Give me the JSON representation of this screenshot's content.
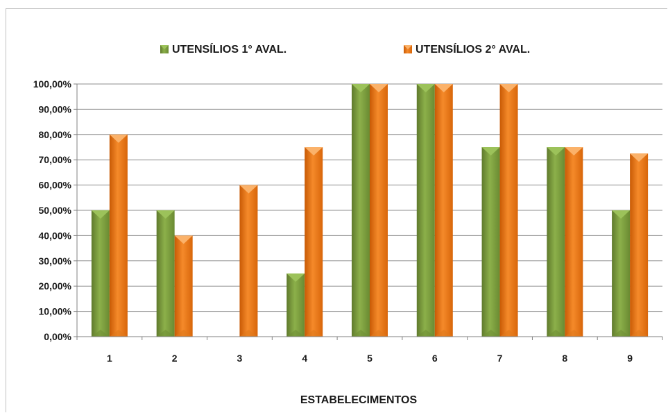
{
  "chart_data": {
    "type": "bar",
    "title": "",
    "xlabel": "ESTABELECIMENTOS",
    "ylabel": "",
    "categories": [
      "1",
      "2",
      "3",
      "4",
      "5",
      "6",
      "7",
      "8",
      "9"
    ],
    "series": [
      {
        "name": "UTENSÍLIOS 1° AVAL.",
        "color": "#77933c",
        "values": [
          50,
          50,
          0,
          25,
          100,
          100,
          75,
          75,
          50
        ]
      },
      {
        "name": "UTENSÍLIOS 2° AVAL.",
        "color": "#e46c0a",
        "values": [
          80,
          40,
          60,
          75,
          100,
          100,
          100,
          75,
          72.5
        ]
      }
    ],
    "ylim": [
      0,
      100
    ],
    "yticks": [
      0,
      10,
      20,
      30,
      40,
      50,
      60,
      70,
      80,
      90,
      100
    ],
    "ytick_labels": [
      "0,00%",
      "10,00%",
      "20,00%",
      "30,00%",
      "40,00%",
      "50,00%",
      "60,00%",
      "70,00%",
      "80,00%",
      "90,00%",
      "100,00%"
    ],
    "grid": true,
    "legend_position": "top-center"
  }
}
